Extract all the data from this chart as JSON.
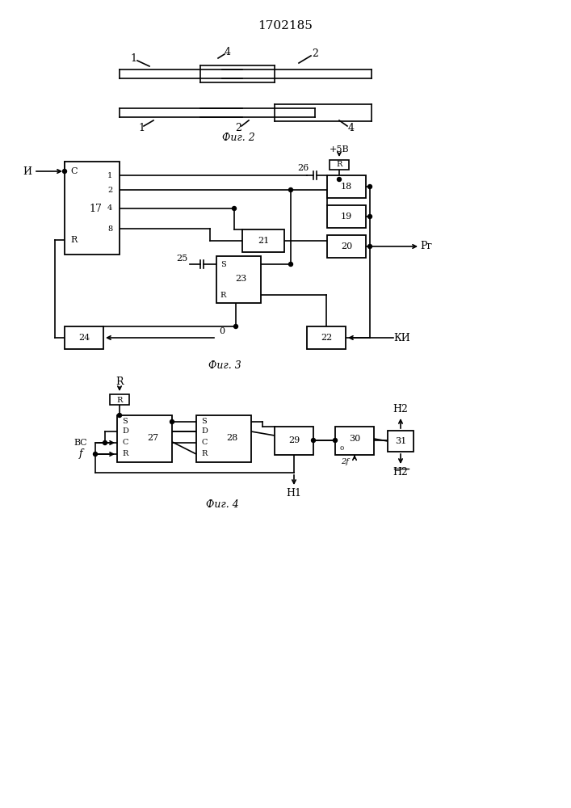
{
  "title": "1702185",
  "bg_color": "#ffffff",
  "line_color": "#000000",
  "fig2_caption": "Фиг. 2",
  "fig3_caption": "Фиг. 3",
  "fig4_caption": "Фиг. 4"
}
